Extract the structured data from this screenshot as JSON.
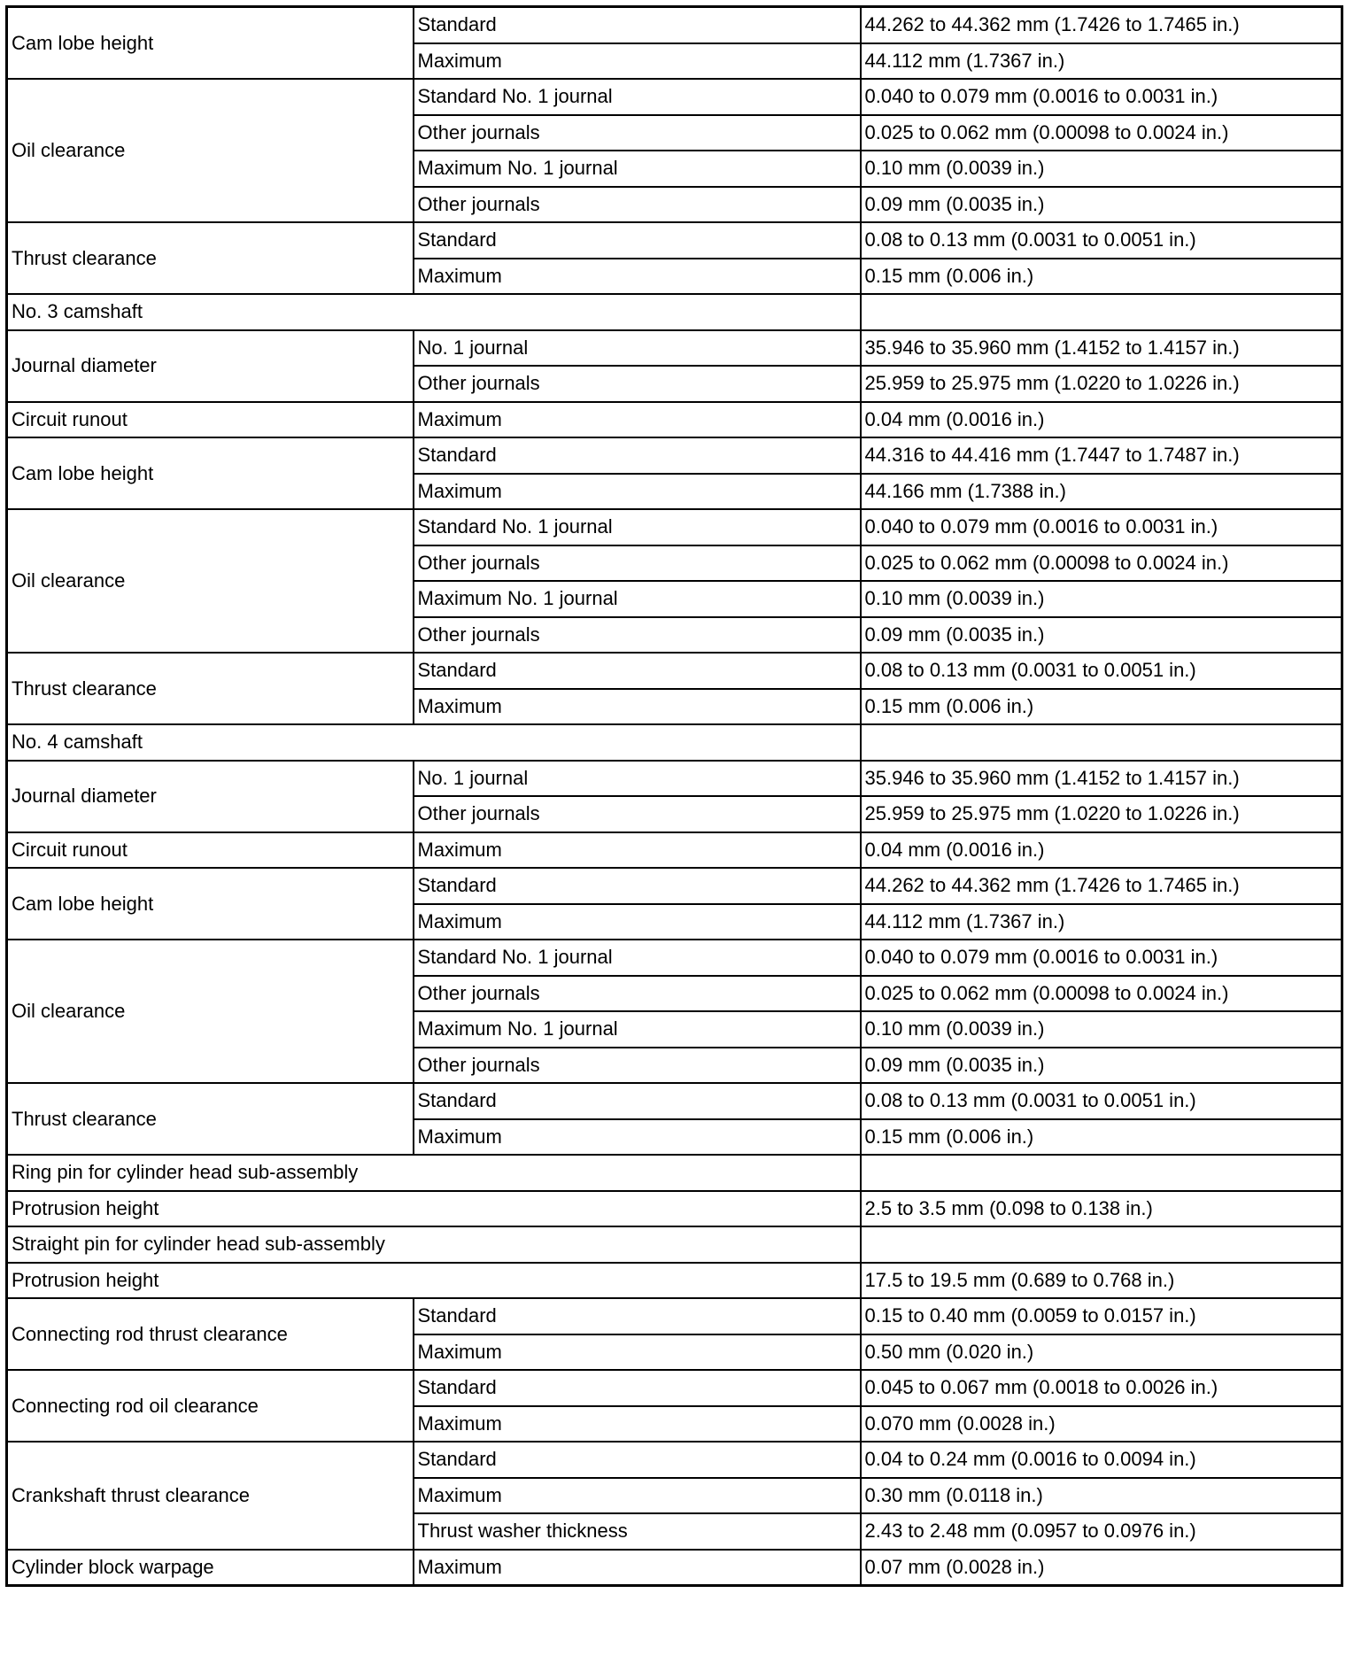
{
  "table": {
    "rows": [
      {
        "item": "Cam lobe height",
        "specs": [
          {
            "condition": "Standard",
            "value": "44.262 to 44.362 mm (1.7426 to 1.7465 in.)"
          },
          {
            "condition": "Maximum",
            "value": "44.112 mm (1.7367 in.)"
          }
        ]
      },
      {
        "item": "Oil clearance",
        "specs": [
          {
            "condition": "Standard No. 1 journal",
            "value": "0.040 to 0.079 mm (0.0016 to 0.0031 in.)"
          },
          {
            "condition": "Other journals",
            "value": "0.025 to 0.062 mm (0.00098 to 0.0024 in.)"
          },
          {
            "condition": "Maximum No. 1 journal",
            "value": "0.10 mm (0.0039 in.)"
          },
          {
            "condition": "Other journals",
            "value": "0.09 mm (0.0035 in.)"
          }
        ]
      },
      {
        "item": "Thrust clearance",
        "specs": [
          {
            "condition": "Standard",
            "value": "0.08 to 0.13 mm (0.0031 to 0.0051 in.)"
          },
          {
            "condition": "Maximum",
            "value": "0.15 mm (0.006 in.)"
          }
        ]
      },
      {
        "item": "No. 3 camshaft"
      },
      {
        "item": "Journal diameter",
        "specs": [
          {
            "condition": "No. 1 journal",
            "value": "35.946 to 35.960 mm (1.4152 to 1.4157 in.)"
          },
          {
            "condition": "Other journals",
            "value": "25.959 to 25.975 mm (1.0220 to 1.0226 in.)"
          }
        ]
      },
      {
        "item": "Circuit runout",
        "specs": [
          {
            "condition": "Maximum",
            "value": "0.04 mm (0.0016 in.)"
          }
        ]
      },
      {
        "item": "Cam lobe height",
        "specs": [
          {
            "condition": "Standard",
            "value": "44.316 to 44.416 mm (1.7447 to 1.7487 in.)"
          },
          {
            "condition": "Maximum",
            "value": "44.166 mm (1.7388 in.)"
          }
        ]
      },
      {
        "item": "Oil clearance",
        "specs": [
          {
            "condition": "Standard No. 1 journal",
            "value": "0.040 to 0.079 mm (0.0016 to 0.0031 in.)"
          },
          {
            "condition": "Other journals",
            "value": "0.025 to 0.062 mm (0.00098 to 0.0024 in.)"
          },
          {
            "condition": "Maximum No. 1 journal",
            "value": "0.10 mm (0.0039 in.)"
          },
          {
            "condition": "Other journals",
            "value": "0.09 mm (0.0035 in.)"
          }
        ]
      },
      {
        "item": "Thrust clearance",
        "specs": [
          {
            "condition": "Standard",
            "value": "0.08 to 0.13 mm (0.0031 to 0.0051 in.)"
          },
          {
            "condition": "Maximum",
            "value": "0.15 mm (0.006 in.)"
          }
        ]
      },
      {
        "item": "No. 4 camshaft"
      },
      {
        "item": "Journal diameter",
        "specs": [
          {
            "condition": "No. 1 journal",
            "value": "35.946 to 35.960 mm (1.4152 to 1.4157 in.)"
          },
          {
            "condition": "Other journals",
            "value": "25.959 to 25.975 mm (1.0220 to 1.0226 in.)"
          }
        ]
      },
      {
        "item": "Circuit runout",
        "specs": [
          {
            "condition": "Maximum",
            "value": "0.04 mm (0.0016 in.)"
          }
        ]
      },
      {
        "item": "Cam lobe height",
        "specs": [
          {
            "condition": "Standard",
            "value": "44.262 to 44.362 mm (1.7426 to 1.7465 in.)"
          },
          {
            "condition": "Maximum",
            "value": "44.112 mm (1.7367 in.)"
          }
        ]
      },
      {
        "item": "Oil clearance",
        "specs": [
          {
            "condition": "Standard No. 1 journal",
            "value": "0.040 to 0.079 mm (0.0016 to 0.0031 in.)"
          },
          {
            "condition": "Other journals",
            "value": "0.025 to 0.062 mm (0.00098 to 0.0024 in.)"
          },
          {
            "condition": "Maximum No. 1 journal",
            "value": "0.10 mm (0.0039 in.)"
          },
          {
            "condition": "Other journals",
            "value": "0.09 mm (0.0035 in.)"
          }
        ]
      },
      {
        "item": "Thrust clearance",
        "specs": [
          {
            "condition": "Standard",
            "value": "0.08 to 0.13 mm (0.0031 to 0.0051 in.)"
          },
          {
            "condition": "Maximum",
            "value": "0.15 mm (0.006 in.)"
          }
        ]
      },
      {
        "item": "Ring pin for cylinder head sub-assembly"
      },
      {
        "item": "Protrusion height",
        "value": "2.5 to 3.5 mm (0.098 to 0.138 in.)"
      },
      {
        "item": "Straight pin for cylinder head sub-assembly"
      },
      {
        "item": "Protrusion height",
        "value": "17.5 to 19.5 mm (0.689 to 0.768 in.)"
      },
      {
        "item": "Connecting rod thrust clearance",
        "specs": [
          {
            "condition": "Standard",
            "value": "0.15 to 0.40 mm (0.0059 to 0.0157 in.)"
          },
          {
            "condition": "Maximum",
            "value": "0.50 mm (0.020 in.)"
          }
        ]
      },
      {
        "item": "Connecting rod oil clearance",
        "specs": [
          {
            "condition": "Standard",
            "value": "0.045 to 0.067 mm (0.0018 to 0.0026 in.)"
          },
          {
            "condition": "Maximum",
            "value": "0.070 mm (0.0028 in.)"
          }
        ]
      },
      {
        "item": "Crankshaft thrust clearance",
        "specs": [
          {
            "condition": "Standard",
            "value": "0.04 to 0.24 mm (0.0016 to 0.0094 in.)"
          },
          {
            "condition": "Maximum",
            "value": "0.30 mm (0.0118 in.)"
          },
          {
            "condition": "Thrust washer thickness",
            "value": "2.43 to 2.48 mm (0.0957 to 0.0976 in.)"
          }
        ]
      },
      {
        "item": "Cylinder block warpage",
        "specs": [
          {
            "condition": "Maximum",
            "value": "0.07 mm (0.0028 in.)"
          }
        ]
      }
    ]
  }
}
